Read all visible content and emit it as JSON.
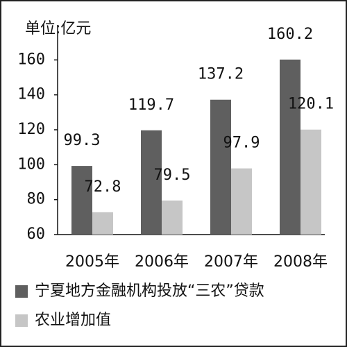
{
  "chart_data": {
    "type": "bar",
    "y_label": "单位:亿元",
    "categories": [
      "2005年",
      "2006年",
      "2007年",
      "2008年"
    ],
    "series": [
      {
        "name": "宁夏地方金融机构投放“三农”贷款",
        "color": "#5f5f5f",
        "values": [
          99.3,
          119.7,
          137.2,
          160.2
        ]
      },
      {
        "name": "农业增加值",
        "color": "#c6c6c6",
        "values": [
          72.8,
          79.5,
          97.9,
          120.1
        ]
      }
    ],
    "ylim": [
      60,
      180
    ],
    "yticks": [
      60,
      80,
      100,
      120,
      140,
      160
    ]
  }
}
